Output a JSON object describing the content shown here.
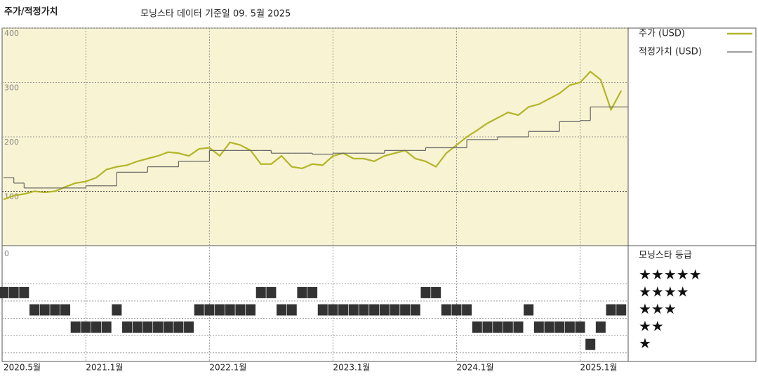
{
  "chart_data": [
    {
      "type": "line",
      "title": "주가/적정가치",
      "subtitle": "모닝스타 데이터 기준일 09. 5월 2025",
      "x": [
        "2020-05",
        "2020-06",
        "2020-07",
        "2020-08",
        "2020-09",
        "2020-10",
        "2020-11",
        "2020-12",
        "2021-01",
        "2021-02",
        "2021-03",
        "2021-04",
        "2021-05",
        "2021-06",
        "2021-07",
        "2021-08",
        "2021-09",
        "2021-10",
        "2021-11",
        "2021-12",
        "2022-01",
        "2022-02",
        "2022-03",
        "2022-04",
        "2022-05",
        "2022-06",
        "2022-07",
        "2022-08",
        "2022-09",
        "2022-10",
        "2022-11",
        "2022-12",
        "2023-01",
        "2023-02",
        "2023-03",
        "2023-04",
        "2023-05",
        "2023-06",
        "2023-07",
        "2023-08",
        "2023-09",
        "2023-10",
        "2023-11",
        "2023-12",
        "2024-01",
        "2024-02",
        "2024-03",
        "2024-04",
        "2024-05",
        "2024-06",
        "2024-07",
        "2024-08",
        "2024-09",
        "2024-10",
        "2024-11",
        "2024-12",
        "2025-01",
        "2025-02",
        "2025-03",
        "2025-04",
        "2025-05"
      ],
      "xticks": [
        {
          "value": "2020-05",
          "label": "2020.5월"
        },
        {
          "value": "2021-01",
          "label": "2021.1월"
        },
        {
          "value": "2022-01",
          "label": "2022.1월"
        },
        {
          "value": "2023-01",
          "label": "2023.1월"
        },
        {
          "value": "2024-01",
          "label": "2024.1월"
        },
        {
          "value": "2025-01",
          "label": "2025.1월"
        }
      ],
      "series": [
        {
          "name": "주가 (USD)",
          "color": "#b3b52a",
          "values": [
            85,
            92,
            95,
            100,
            98,
            100,
            108,
            115,
            118,
            125,
            140,
            145,
            148,
            155,
            160,
            165,
            172,
            170,
            165,
            178,
            180,
            165,
            190,
            185,
            175,
            150,
            150,
            165,
            145,
            142,
            150,
            148,
            165,
            170,
            160,
            160,
            155,
            165,
            170,
            175,
            160,
            155,
            145,
            170,
            185,
            200,
            212,
            225,
            235,
            245,
            240,
            255,
            260,
            270,
            280,
            295,
            300,
            320,
            305,
            250,
            285
          ]
        },
        {
          "name": "적정가치 (USD)",
          "color": "#666666",
          "step": true,
          "values": [
            125,
            115,
            106,
            106,
            106,
            106,
            106,
            106,
            110,
            110,
            110,
            135,
            135,
            135,
            145,
            145,
            145,
            155,
            155,
            155,
            175,
            175,
            175,
            175,
            175,
            175,
            170,
            170,
            170,
            170,
            168,
            168,
            170,
            170,
            170,
            170,
            170,
            175,
            175,
            175,
            175,
            180,
            180,
            180,
            180,
            195,
            195,
            195,
            200,
            200,
            200,
            210,
            210,
            210,
            228,
            228,
            230,
            255,
            255,
            255,
            255
          ]
        }
      ],
      "ylim": [
        0,
        400
      ],
      "yticks": [
        100,
        200,
        300,
        400
      ],
      "grid": true,
      "legend": "right"
    },
    {
      "type": "rating",
      "title": "모닝스타 등급",
      "axis_label": "0",
      "color": "#333333",
      "values": [
        4,
        4,
        4,
        3,
        3,
        3,
        3,
        2,
        2,
        2,
        2,
        3,
        2,
        2,
        2,
        2,
        2,
        2,
        2,
        3,
        3,
        3,
        3,
        3,
        3,
        4,
        4,
        3,
        3,
        4,
        4,
        3,
        3,
        3,
        3,
        3,
        3,
        3,
        3,
        3,
        3,
        4,
        4,
        3,
        3,
        3,
        2,
        2,
        2,
        2,
        2,
        3,
        2,
        2,
        2,
        2,
        2,
        1,
        2,
        3,
        3
      ],
      "levels": [
        {
          "value": 5,
          "label": "★★★★★"
        },
        {
          "value": 4,
          "label": "★★★★"
        },
        {
          "value": 3,
          "label": "★★★"
        },
        {
          "value": 2,
          "label": "★★"
        },
        {
          "value": 1,
          "label": "★"
        }
      ],
      "ylim": [
        0.5,
        5.5
      ]
    }
  ]
}
